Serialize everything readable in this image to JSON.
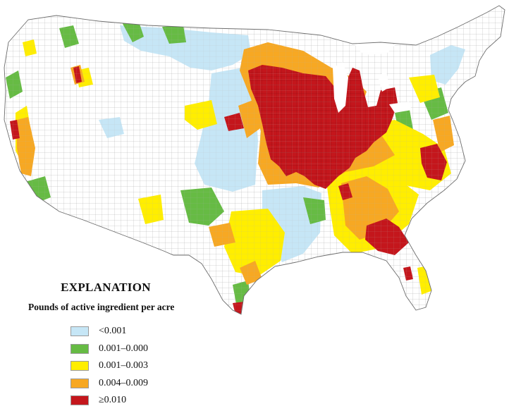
{
  "legend": {
    "title": "EXPLANATION",
    "subtitle": "Pounds of active ingredient per acre",
    "items": [
      {
        "label": "<0.001",
        "color": "#c6e6f6"
      },
      {
        "label": "0.001–0.000",
        "color": "#66bb44"
      },
      {
        "label": "0.001–0.003",
        "color": "#ffee00"
      },
      {
        "label": "0.004–0.009",
        "color": "#f7a823"
      },
      {
        "label": "≥0.010",
        "color": "#c4161c"
      }
    ]
  },
  "map": {
    "region": "Conterminous United States",
    "county_boundaries": true,
    "boundary_color": "#9a9a9a",
    "land_color": "#ffffff"
  }
}
